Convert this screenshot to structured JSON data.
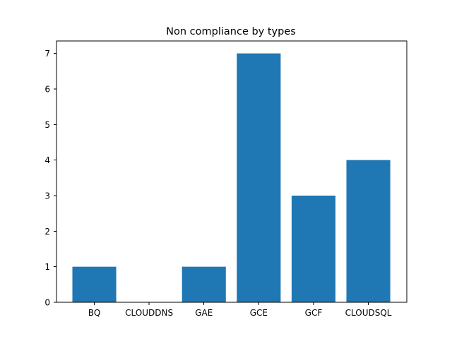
{
  "chart_data": {
    "type": "bar",
    "title": "Non compliance by types",
    "xlabel": "",
    "ylabel": "",
    "categories": [
      "BQ",
      "CLOUDDNS",
      "GAE",
      "GCE",
      "GCF",
      "CLOUDSQL"
    ],
    "values": [
      1,
      0,
      1,
      7,
      3,
      4
    ],
    "ylim": [
      0,
      7.35
    ],
    "yticks": [
      0,
      1,
      2,
      3,
      4,
      5,
      6,
      7
    ],
    "grid": false,
    "bar_color": "#1f77b4"
  }
}
